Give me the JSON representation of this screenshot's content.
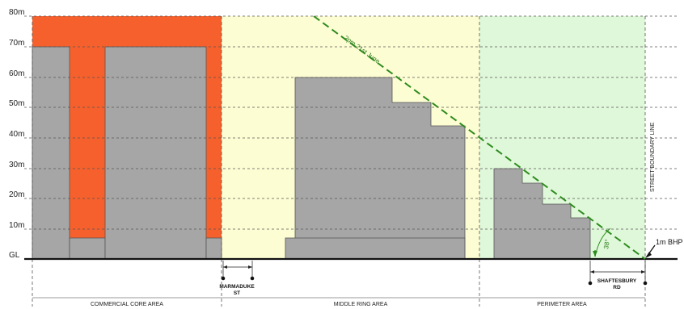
{
  "y_axis": {
    "unit": "m",
    "ticks": [
      "80m",
      "70m",
      "60m",
      "50m",
      "40m",
      "30m",
      "20m",
      "10m",
      "GL"
    ]
  },
  "zones": [
    {
      "label": "COMMERCIAL CORE AREA",
      "color": "#ffffff"
    },
    {
      "label": "MIDDLE RING AREA",
      "color": "#fdfdd3"
    },
    {
      "label": "PERIMETER AREA",
      "color": "#e0f8da"
    }
  ],
  "streets": [
    {
      "label_line1": "MARMADUKE",
      "label_line2": "ST"
    },
    {
      "label_line1": "SHAFTESBURY",
      "label_line2": "RD"
    }
  ],
  "annotations": {
    "shadow_line": "2pm 21st June",
    "angle": "38°",
    "bhp": "1m BHP",
    "boundary": "STREET BOUNDARY LINE"
  },
  "colors": {
    "building": "#a6a6a6",
    "building_outline": "#555555",
    "core_envelope": "#f5602c",
    "shadow_line": "#2e8b1f",
    "grid": "#555555"
  }
}
